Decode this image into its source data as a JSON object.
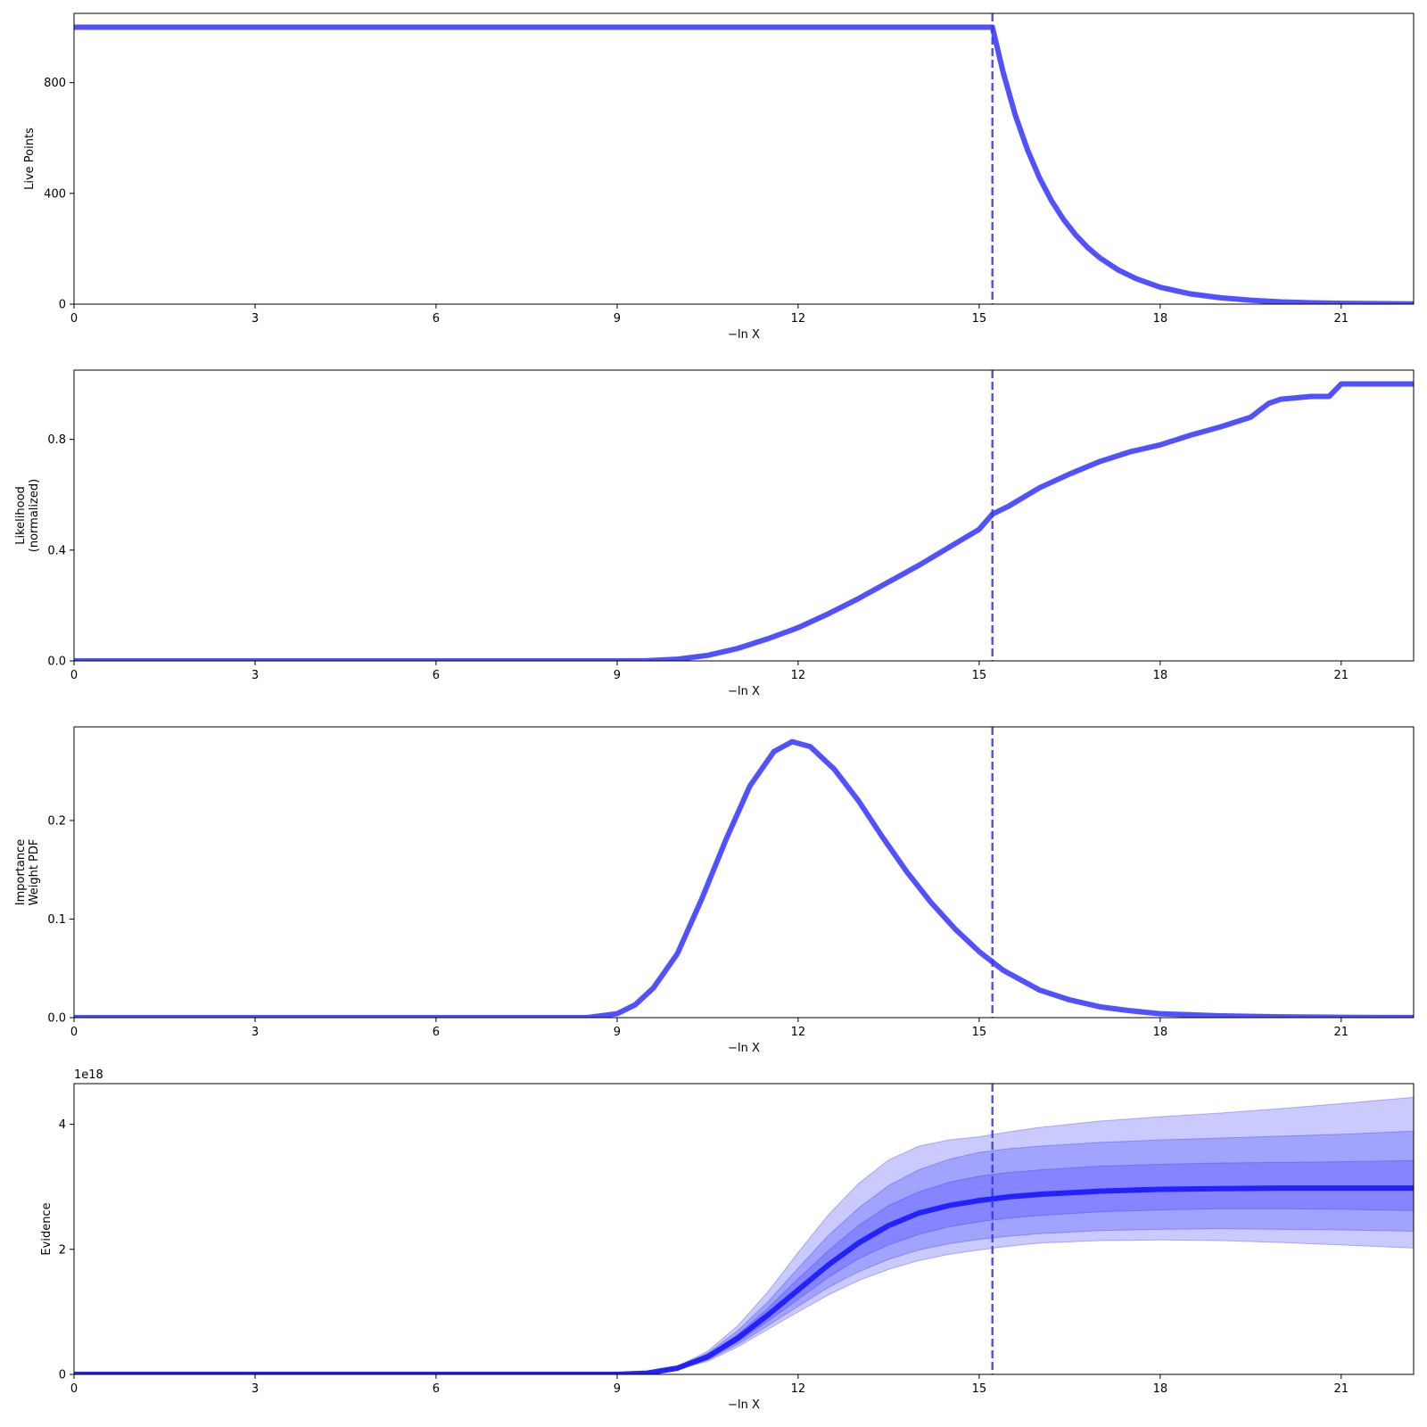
{
  "figure": {
    "background": "#ffffff",
    "line_color": "#3333ff",
    "dash_color": "#3333ff"
  },
  "chart_data": [
    {
      "type": "line",
      "panel": "live-points",
      "ylabel_lines": [
        "Live Points"
      ],
      "xlabel": "−ln X",
      "xlim": [
        0,
        22.2
      ],
      "ylim": [
        0,
        1050
      ],
      "xticks": [
        0,
        3,
        6,
        9,
        12,
        15,
        18,
        21
      ],
      "xtick_labels": [
        "0",
        "3",
        "6",
        "9",
        "12",
        "15",
        "18",
        "21"
      ],
      "yticks": [
        0,
        400,
        800
      ],
      "ytick_labels": [
        "0",
        "400",
        "800"
      ],
      "vline_x": 15.22,
      "series": [
        {
          "x": [
            0,
            15.22,
            15.4,
            15.6,
            15.8,
            16.0,
            16.2,
            16.4,
            16.6,
            16.8,
            17.0,
            17.3,
            17.6,
            18.0,
            18.5,
            19.0,
            19.5,
            20.0,
            20.5,
            21.0,
            21.5,
            22.2
          ],
          "y": [
            1000,
            1000,
            835,
            682,
            558,
            456,
            373,
            305,
            250,
            204,
            167,
            124,
            92,
            61,
            37,
            23,
            14,
            8,
            5,
            3,
            2,
            1
          ]
        }
      ]
    },
    {
      "type": "line",
      "panel": "likelihood",
      "ylabel_lines": [
        "Likelihood",
        "(normalized)"
      ],
      "xlabel": "−ln X",
      "xlim": [
        0,
        22.2
      ],
      "ylim": [
        0,
        1.05
      ],
      "xticks": [
        0,
        3,
        6,
        9,
        12,
        15,
        18,
        21
      ],
      "xtick_labels": [
        "0",
        "3",
        "6",
        "9",
        "12",
        "15",
        "18",
        "21"
      ],
      "yticks": [
        0,
        0.4,
        0.8
      ],
      "ytick_labels": [
        "0.0",
        "0.4",
        "0.8"
      ],
      "vline_x": 15.22,
      "series": [
        {
          "x": [
            0,
            9.0,
            9.5,
            10.0,
            10.5,
            11.0,
            11.5,
            12.0,
            12.5,
            13.0,
            13.5,
            14.0,
            14.5,
            15.0,
            15.22,
            15.5,
            16.0,
            16.5,
            17.0,
            17.5,
            18.0,
            18.5,
            19.0,
            19.5,
            19.8,
            20.0,
            20.5,
            20.8,
            21.0,
            22.2
          ],
          "y": [
            0,
            0,
            0.001,
            0.006,
            0.02,
            0.045,
            0.08,
            0.12,
            0.17,
            0.225,
            0.285,
            0.345,
            0.41,
            0.475,
            0.53,
            0.56,
            0.625,
            0.675,
            0.72,
            0.755,
            0.78,
            0.815,
            0.845,
            0.88,
            0.93,
            0.945,
            0.955,
            0.955,
            1.0,
            1.0
          ]
        }
      ]
    },
    {
      "type": "line",
      "panel": "importance-weight",
      "ylabel_lines": [
        "Importance",
        "Weight PDF"
      ],
      "xlabel": "−ln X",
      "xlim": [
        0,
        22.2
      ],
      "ylim": [
        0,
        0.295
      ],
      "xticks": [
        0,
        3,
        6,
        9,
        12,
        15,
        18,
        21
      ],
      "xtick_labels": [
        "0",
        "3",
        "6",
        "9",
        "12",
        "15",
        "18",
        "21"
      ],
      "yticks": [
        0,
        0.1,
        0.2
      ],
      "ytick_labels": [
        "0.0",
        "0.1",
        "0.2"
      ],
      "vline_x": 15.22,
      "series": [
        {
          "x": [
            0,
            8.5,
            9.0,
            9.3,
            9.6,
            10.0,
            10.4,
            10.8,
            11.2,
            11.6,
            11.9,
            12.2,
            12.6,
            13.0,
            13.4,
            13.8,
            14.2,
            14.6,
            15.0,
            15.4,
            16.0,
            16.5,
            17.0,
            17.5,
            18.0,
            19.0,
            20.0,
            21.0,
            22.2
          ],
          "y": [
            0,
            0,
            0.004,
            0.013,
            0.03,
            0.065,
            0.12,
            0.18,
            0.235,
            0.27,
            0.28,
            0.275,
            0.252,
            0.22,
            0.183,
            0.148,
            0.117,
            0.09,
            0.067,
            0.048,
            0.028,
            0.018,
            0.011,
            0.007,
            0.004,
            0.0018,
            0.0008,
            0.0003,
            0.0001
          ]
        }
      ]
    },
    {
      "type": "area",
      "panel": "evidence",
      "ylabel_lines": [
        "Evidence"
      ],
      "xlabel": "−ln X",
      "offset_text": "1e18",
      "xlim": [
        0,
        22.2
      ],
      "ylim": [
        0,
        4.65
      ],
      "xticks": [
        0,
        3,
        6,
        9,
        12,
        15,
        18,
        21
      ],
      "xtick_labels": [
        "0",
        "3",
        "6",
        "9",
        "12",
        "15",
        "18",
        "21"
      ],
      "yticks": [
        0,
        2,
        4
      ],
      "ytick_labels": [
        "0",
        "2",
        "4"
      ],
      "vline_x": 15.22,
      "x": [
        0,
        9.0,
        9.5,
        10.0,
        10.5,
        11.0,
        11.5,
        12.0,
        12.5,
        13.0,
        13.5,
        14.0,
        14.5,
        15.0,
        15.5,
        16.0,
        17.0,
        18.0,
        19.0,
        20.0,
        21.0,
        22.2
      ],
      "series": [
        {
          "name": "mean",
          "y": [
            0,
            0,
            0.02,
            0.1,
            0.28,
            0.58,
            0.95,
            1.35,
            1.75,
            2.1,
            2.38,
            2.58,
            2.7,
            2.78,
            2.84,
            2.88,
            2.93,
            2.96,
            2.97,
            2.98,
            2.98,
            2.98
          ]
        },
        {
          "name": "band-1-upper",
          "y": [
            0,
            0,
            0.02,
            0.11,
            0.31,
            0.64,
            1.06,
            1.53,
            1.98,
            2.38,
            2.7,
            2.92,
            3.07,
            3.17,
            3.23,
            3.27,
            3.33,
            3.36,
            3.38,
            3.39,
            3.4,
            3.42
          ]
        },
        {
          "name": "band-1-lower",
          "y": [
            0,
            0,
            0.02,
            0.09,
            0.25,
            0.52,
            0.85,
            1.2,
            1.55,
            1.85,
            2.07,
            2.24,
            2.36,
            2.44,
            2.5,
            2.54,
            2.6,
            2.63,
            2.65,
            2.65,
            2.64,
            2.62
          ]
        },
        {
          "name": "band-2-upper",
          "y": [
            0,
            0,
            0.02,
            0.12,
            0.34,
            0.7,
            1.16,
            1.7,
            2.22,
            2.66,
            3.02,
            3.27,
            3.44,
            3.55,
            3.61,
            3.65,
            3.71,
            3.75,
            3.78,
            3.81,
            3.84,
            3.89
          ]
        },
        {
          "name": "band-2-lower",
          "y": [
            0,
            0,
            0.02,
            0.09,
            0.23,
            0.48,
            0.78,
            1.09,
            1.39,
            1.64,
            1.84,
            1.99,
            2.09,
            2.16,
            2.21,
            2.25,
            2.3,
            2.32,
            2.33,
            2.32,
            2.31,
            2.29
          ]
        },
        {
          "name": "band-3-upper",
          "y": [
            0,
            0,
            0.02,
            0.13,
            0.37,
            0.78,
            1.32,
            1.95,
            2.55,
            3.05,
            3.43,
            3.65,
            3.75,
            3.8,
            3.88,
            3.95,
            4.05,
            4.12,
            4.18,
            4.25,
            4.33,
            4.43
          ]
        },
        {
          "name": "band-3-lower",
          "y": [
            0,
            0,
            0.02,
            0.08,
            0.21,
            0.44,
            0.72,
            1.0,
            1.27,
            1.5,
            1.68,
            1.82,
            1.92,
            1.99,
            2.05,
            2.1,
            2.14,
            2.15,
            2.14,
            2.11,
            2.07,
            2.02
          ]
        }
      ]
    }
  ]
}
